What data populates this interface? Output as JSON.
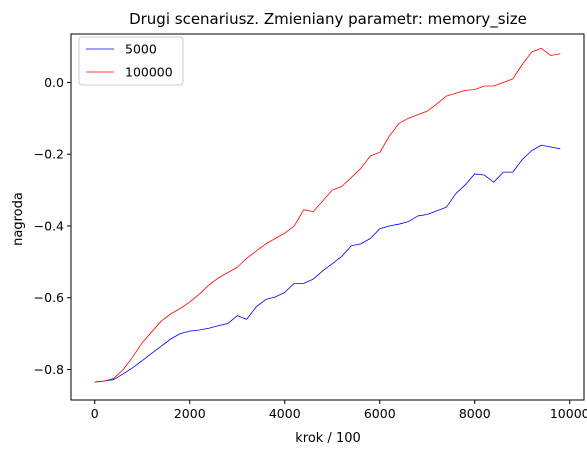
{
  "chart_data": {
    "type": "line",
    "title": "Drugi scenariusz. Zmieniany parametr: memory_size",
    "xlabel": "krok / 100",
    "ylabel": "nagroda",
    "xlim": [
      -500,
      10300
    ],
    "ylim": [
      -0.885,
      0.135
    ],
    "xticks": [
      0,
      2000,
      4000,
      6000,
      8000,
      10000
    ],
    "xtick_labels": [
      "0",
      "2000",
      "4000",
      "6000",
      "8000",
      "10000"
    ],
    "yticks": [
      -0.8,
      -0.6,
      -0.4,
      -0.2,
      0.0
    ],
    "ytick_labels": [
      "−0.8",
      "−0.6",
      "−0.4",
      "−0.2",
      "0.0"
    ],
    "grid": false,
    "legend_position": "top-left",
    "series": [
      {
        "name": "5000",
        "color": "#0000ff",
        "x": [
          0,
          200,
          400,
          600,
          800,
          1000,
          1200,
          1400,
          1600,
          1800,
          2000,
          2200,
          2400,
          2600,
          2800,
          3000,
          3200,
          3400,
          3600,
          3800,
          4000,
          4200,
          4400,
          4600,
          4800,
          5000,
          5200,
          5400,
          5600,
          5800,
          6000,
          6200,
          6400,
          6600,
          6800,
          7000,
          7200,
          7400,
          7600,
          7800,
          8000,
          8200,
          8400,
          8600,
          8800,
          9000,
          9200,
          9400,
          9600,
          9800
        ],
        "values": [
          -0.835,
          -0.832,
          -0.828,
          -0.812,
          -0.795,
          -0.775,
          -0.755,
          -0.735,
          -0.715,
          -0.7,
          -0.693,
          -0.69,
          -0.685,
          -0.678,
          -0.672,
          -0.65,
          -0.66,
          -0.625,
          -0.605,
          -0.598,
          -0.585,
          -0.56,
          -0.56,
          -0.548,
          -0.525,
          -0.505,
          -0.485,
          -0.455,
          -0.45,
          -0.435,
          -0.408,
          -0.4,
          -0.395,
          -0.388,
          -0.372,
          -0.368,
          -0.358,
          -0.348,
          -0.31,
          -0.285,
          -0.255,
          -0.258,
          -0.278,
          -0.25,
          -0.25,
          -0.215,
          -0.19,
          -0.175,
          -0.18,
          -0.185
        ]
      },
      {
        "name": "100000",
        "color": "#ff0000",
        "x": [
          0,
          200,
          400,
          600,
          800,
          1000,
          1200,
          1400,
          1600,
          1800,
          2000,
          2200,
          2400,
          2600,
          2800,
          3000,
          3200,
          3400,
          3600,
          3800,
          4000,
          4200,
          4400,
          4600,
          4800,
          5000,
          5200,
          5400,
          5600,
          5800,
          6000,
          6200,
          6400,
          6600,
          6800,
          7000,
          7200,
          7400,
          7600,
          7800,
          8000,
          8200,
          8400,
          8600,
          8800,
          9000,
          9200,
          9400,
          9600,
          9800
        ],
        "values": [
          -0.835,
          -0.832,
          -0.825,
          -0.8,
          -0.765,
          -0.725,
          -0.695,
          -0.665,
          -0.645,
          -0.63,
          -0.612,
          -0.59,
          -0.565,
          -0.545,
          -0.53,
          -0.515,
          -0.49,
          -0.47,
          -0.45,
          -0.435,
          -0.42,
          -0.4,
          -0.355,
          -0.36,
          -0.33,
          -0.3,
          -0.29,
          -0.265,
          -0.24,
          -0.205,
          -0.195,
          -0.15,
          -0.115,
          -0.1,
          -0.09,
          -0.08,
          -0.06,
          -0.038,
          -0.03,
          -0.022,
          -0.02,
          -0.01,
          -0.01,
          0.0,
          0.01,
          0.05,
          0.085,
          0.095,
          0.075,
          0.08
        ]
      }
    ]
  }
}
